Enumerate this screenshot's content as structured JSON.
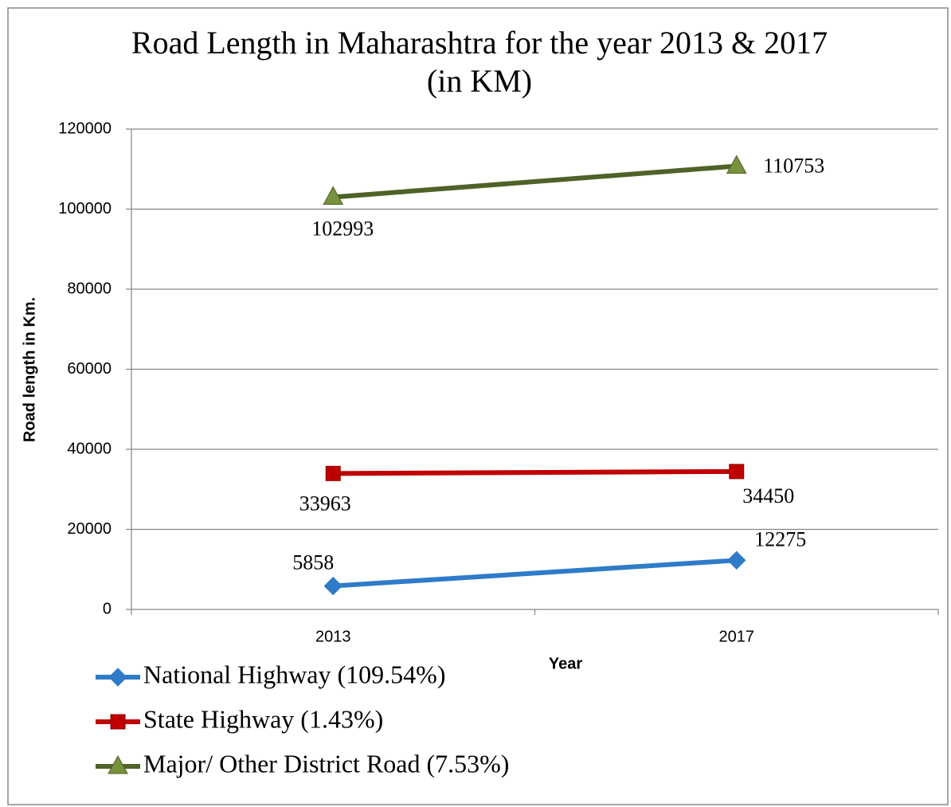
{
  "chart_data": {
    "type": "line",
    "title": [
      "Road Length in Maharashtra for the year 2013 & 2017",
      "(in KM)"
    ],
    "x_label": "Year",
    "y_label": "Road length in Km.",
    "categories": [
      "2013",
      "2017"
    ],
    "series": [
      {
        "name": "National Highway (109.54%)",
        "color": "#2f7bc8",
        "marker": "diamond",
        "values": [
          5858,
          12275
        ]
      },
      {
        "name": "State Highway (1.43%)",
        "color": "#c00000",
        "marker": "square",
        "values": [
          33963,
          34450
        ]
      },
      {
        "name": "Major/ Other District Road (7.53%)",
        "color": "#4f6228",
        "marker": "triangle",
        "values": [
          102993,
          110753
        ]
      }
    ],
    "ylim": [
      0,
      120000
    ],
    "yticks": [
      0,
      20000,
      40000,
      60000,
      80000,
      100000,
      120000
    ],
    "grid": true,
    "legend": "bottom-left"
  }
}
